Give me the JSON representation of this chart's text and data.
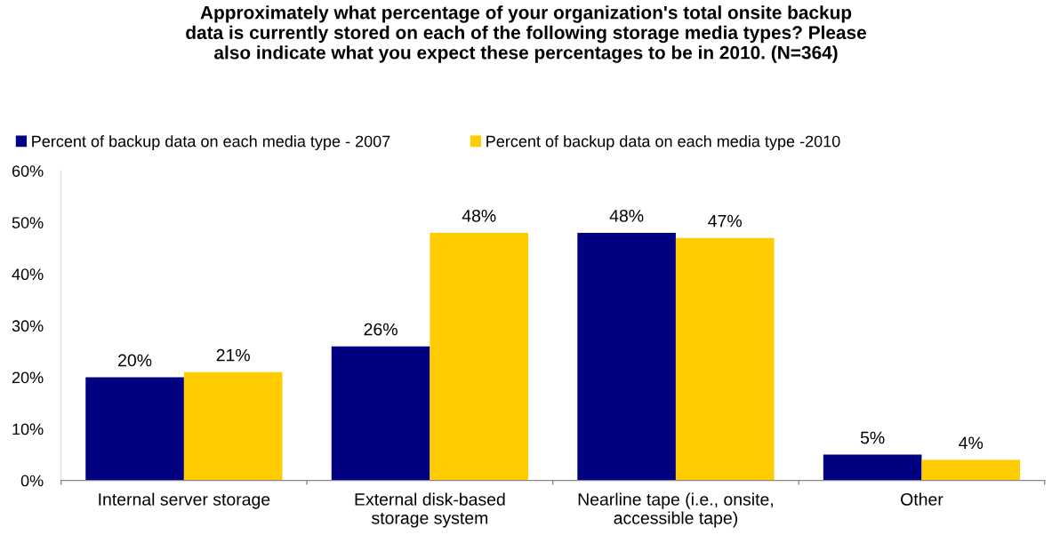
{
  "chart_data": {
    "type": "bar",
    "title": "Approximately what percentage of your organization's total onsite backup\ndata is currently stored on each of the following storage media types? Please\nalso indicate what you expect these percentages to be in 2010. (N=364)",
    "categories": [
      "Internal server storage",
      "External disk-based\nstorage system",
      "Nearline tape (i.e., onsite,\naccessible tape)",
      "Other"
    ],
    "series": [
      {
        "name": "Percent of backup data on each media type - 2007",
        "color": "#000080",
        "values": [
          20,
          26,
          48,
          5
        ],
        "value_labels": [
          "20%",
          "26%",
          "48%",
          "5%"
        ]
      },
      {
        "name": "Percent of backup data on each media type -2010",
        "color": "#ffcc00",
        "values": [
          21,
          48,
          47,
          4
        ],
        "value_labels": [
          "21%",
          "48%",
          "47%",
          "4%"
        ]
      }
    ],
    "ylim": [
      0,
      60
    ],
    "yticks": [
      {
        "value": 0,
        "label": "0%"
      },
      {
        "value": 10,
        "label": "10%"
      },
      {
        "value": 20,
        "label": "20%"
      },
      {
        "value": 30,
        "label": "30%"
      },
      {
        "value": 40,
        "label": "40%"
      },
      {
        "value": 50,
        "label": "50%"
      },
      {
        "value": 60,
        "label": "60%"
      }
    ],
    "legend": "top left"
  }
}
